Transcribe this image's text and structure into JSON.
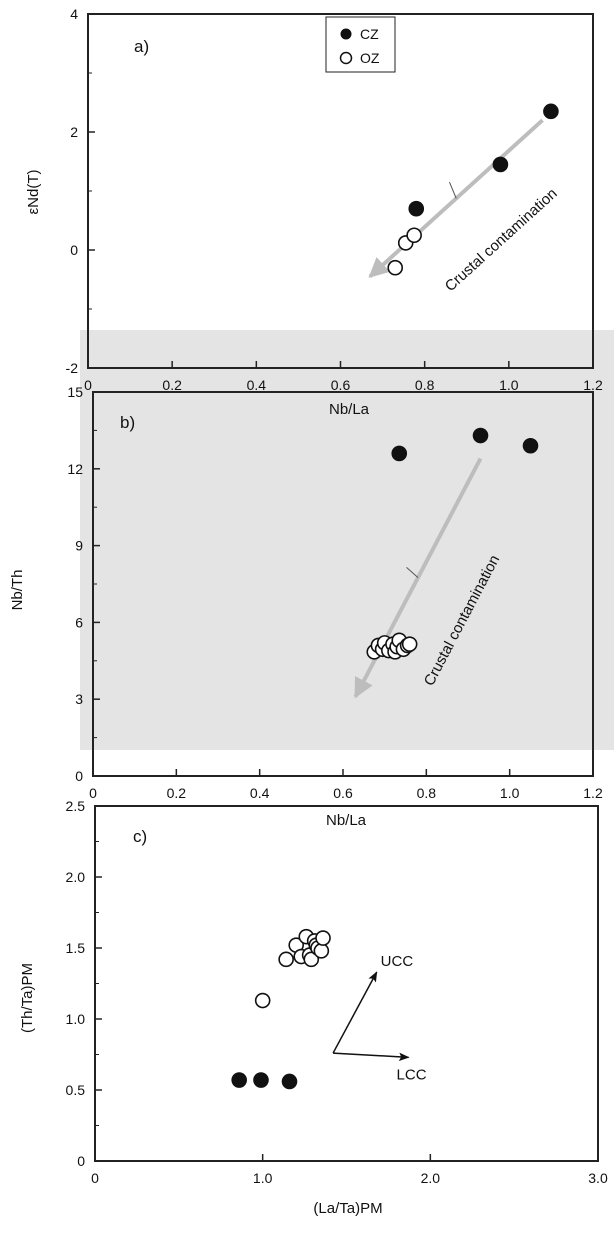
{
  "chart_data": [
    {
      "type": "scatter",
      "panel_label": "a)",
      "xlabel": "Nb/La",
      "ylabel": "εNd(T)",
      "xlim": [
        0,
        1.2
      ],
      "ylim": [
        -2,
        4
      ],
      "xticks": [
        "0",
        "0.2",
        "0.4",
        "0.6",
        "0.8",
        "1.0",
        "1.2"
      ],
      "yticks": [
        "-2",
        "0",
        "2",
        "4"
      ],
      "legend": {
        "placement": "top-center",
        "entries": [
          "CZ",
          "OZ"
        ]
      },
      "series": [
        {
          "name": "CZ",
          "marker": "filled-circle",
          "x": [
            0.78,
            0.98,
            1.1
          ],
          "y": [
            0.7,
            1.45,
            2.35
          ]
        },
        {
          "name": "OZ",
          "marker": "open-circle",
          "x": [
            0.73,
            0.755,
            0.775
          ],
          "y": [
            -0.3,
            0.12,
            0.25
          ]
        }
      ],
      "arrow": {
        "label": "Crustal contamination",
        "from": [
          1.08,
          2.2
        ],
        "to": [
          0.67,
          -0.45
        ]
      }
    },
    {
      "type": "scatter",
      "panel_label": "b)",
      "xlabel": "Nb/La",
      "ylabel": "Nb/Th",
      "xlim": [
        0,
        1.2
      ],
      "ylim": [
        0,
        15
      ],
      "xticks": [
        "0",
        "0.2",
        "0.4",
        "0.6",
        "0.8",
        "1.0",
        "1.2"
      ],
      "yticks": [
        "0",
        "3",
        "6",
        "9",
        "12",
        "15"
      ],
      "series": [
        {
          "name": "CZ",
          "marker": "filled-circle",
          "x": [
            0.735,
            0.93,
            1.05
          ],
          "y": [
            12.6,
            13.3,
            12.9
          ]
        },
        {
          "name": "OZ",
          "marker": "open-circle",
          "x": [
            0.675,
            0.685,
            0.695,
            0.7,
            0.71,
            0.72,
            0.725,
            0.73,
            0.735,
            0.745,
            0.755,
            0.76
          ],
          "y": [
            4.85,
            5.1,
            4.95,
            5.2,
            4.9,
            5.15,
            4.85,
            5.05,
            5.3,
            4.95,
            5.1,
            5.15
          ]
        }
      ],
      "arrow": {
        "label": "Crustal contamination",
        "from": [
          0.93,
          12.4
        ],
        "to": [
          0.63,
          3.1
        ]
      }
    },
    {
      "type": "scatter",
      "panel_label": "c)",
      "xlabel": "(La/Ta)PM",
      "ylabel": "(Th/Ta)PM",
      "xlim": [
        0,
        3.0
      ],
      "ylim": [
        0,
        2.5
      ],
      "xticks": [
        "0",
        "1.0",
        "2.0",
        "3.0"
      ],
      "yticks": [
        "0",
        "0.5",
        "1.0",
        "1.5",
        "2.0",
        "2.5"
      ],
      "series": [
        {
          "name": "CZ",
          "marker": "filled-circle",
          "x": [
            0.86,
            0.99,
            1.16
          ],
          "y": [
            0.57,
            0.57,
            0.56
          ]
        },
        {
          "name": "OZ",
          "marker": "open-circle",
          "x": [
            1.0,
            1.14,
            1.2,
            1.23,
            1.26,
            1.28,
            1.29,
            1.31,
            1.32,
            1.33,
            1.35,
            1.36
          ],
          "y": [
            1.13,
            1.42,
            1.52,
            1.44,
            1.58,
            1.45,
            1.42,
            1.55,
            1.52,
            1.5,
            1.48,
            1.57
          ]
        }
      ],
      "vectors": [
        {
          "label": "UCC",
          "from": [
            1.42,
            0.76
          ],
          "to": [
            1.68,
            1.33
          ]
        },
        {
          "label": "LCC",
          "from": [
            1.42,
            0.76
          ],
          "to": [
            1.87,
            0.73
          ]
        }
      ]
    }
  ]
}
